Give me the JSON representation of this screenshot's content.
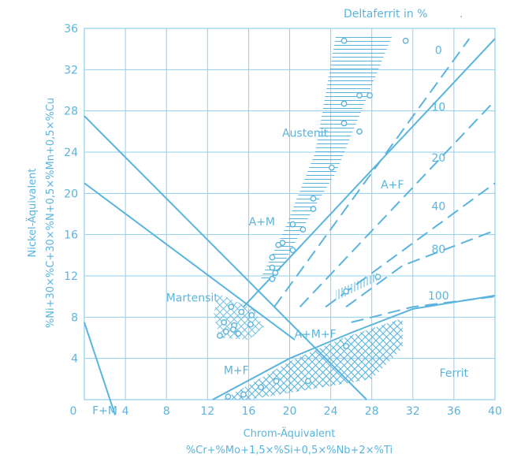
{
  "chart_data": {
    "type": "diagram",
    "title": "",
    "x_axis": {
      "label": "Chrom-Äquivalent",
      "formula": "%Cr+%Mo+1,5×%Si+0,5×%Nb+2×%Ti",
      "range": [
        0,
        40
      ],
      "ticks": [
        "0",
        "4",
        "8",
        "12",
        "16",
        "20",
        "24",
        "28",
        "32",
        "36",
        "40"
      ]
    },
    "y_axis": {
      "label": "Nickel-Äquivalent",
      "formula": "%Ni+30×%C+30×%N+0,5×%Mn+0,5×%Cu",
      "range": [
        0,
        36
      ],
      "ticks": [
        "4",
        "8",
        "12",
        "16",
        "20",
        "24",
        "28",
        "32",
        "36"
      ]
    },
    "grid": true,
    "deltaferrit_title": "Deltaferrit in %",
    "regions": [
      {
        "label": "Austenit",
        "x": 21.5,
        "y": 25.5
      },
      {
        "label": "A+M",
        "x": 17.3,
        "y": 16.9
      },
      {
        "label": "Martensit",
        "x": 10.5,
        "y": 9.5
      },
      {
        "label": "A+F",
        "x": 30.0,
        "y": 20.5
      },
      {
        "label": "A+M+F",
        "x": 22.5,
        "y": 6.0
      },
      {
        "label": "M+F",
        "x": 14.8,
        "y": 2.5
      },
      {
        "label": "F+M",
        "x": 2.0,
        "y": -1.4
      },
      {
        "label": "Ferrit",
        "x": 36.0,
        "y": 2.2
      }
    ],
    "ferrite_lines": [
      {
        "label": "0",
        "style": "solid",
        "points": [
          [
            15.5,
            9
          ],
          [
            40,
            35
          ]
        ]
      },
      {
        "label": "10",
        "style": "dashed",
        "points": [
          [
            18.5,
            9
          ],
          [
            37.5,
            35
          ]
        ]
      },
      {
        "label": "20",
        "style": "dashed",
        "points": [
          [
            21,
            9
          ],
          [
            40,
            29
          ]
        ]
      },
      {
        "label": "40",
        "style": "dashed",
        "points": [
          [
            23.5,
            9
          ],
          [
            40,
            21
          ]
        ]
      },
      {
        "label": "80",
        "style": "dashed",
        "points": [
          [
            25.5,
            9
          ],
          [
            31,
            13
          ],
          [
            40,
            16.4
          ]
        ]
      },
      {
        "label": "100",
        "style": "dashed",
        "points": [
          [
            26,
            7.5
          ],
          [
            32,
            9
          ],
          [
            40,
            10
          ]
        ]
      }
    ],
    "ferrite_labels": [
      {
        "label": "0",
        "x": 34.5,
        "y": 33.5
      },
      {
        "label": "10",
        "x": 34.5,
        "y": 28.0
      },
      {
        "label": "20",
        "x": 34.5,
        "y": 23.1
      },
      {
        "label": "40",
        "x": 34.5,
        "y": 18.4
      },
      {
        "label": "80",
        "x": 34.5,
        "y": 14.2
      },
      {
        "label": "100",
        "x": 34.5,
        "y": 9.7
      }
    ],
    "boundaries": [
      {
        "name": "upper",
        "points": [
          [
            0,
            27.5
          ],
          [
            27.5,
            0
          ]
        ]
      },
      {
        "name": "lower",
        "points": [
          [
            0,
            21
          ],
          [
            20.5,
            5.8
          ]
        ]
      },
      {
        "name": "corner",
        "points": [
          [
            0,
            7.5
          ],
          [
            3,
            -1.5
          ]
        ]
      },
      {
        "name": "mf-curve",
        "points": [
          [
            12.5,
            0
          ],
          [
            20,
            4
          ],
          [
            26,
            6.5
          ],
          [
            32,
            8.8
          ],
          [
            40,
            10.1
          ]
        ]
      }
    ],
    "data_points": [
      [
        25.3,
        34.8
      ],
      [
        31.3,
        34.8
      ],
      [
        26.8,
        29.5
      ],
      [
        27.8,
        29.5
      ],
      [
        25.3,
        28.7
      ],
      [
        25.3,
        26.8
      ],
      [
        26.8,
        26
      ],
      [
        24.1,
        22.5
      ],
      [
        22.3,
        19.5
      ],
      [
        22.3,
        18.5
      ],
      [
        20.3,
        17
      ],
      [
        21.3,
        16.5
      ],
      [
        19.3,
        15.2
      ],
      [
        20.3,
        14.5
      ],
      [
        18.9,
        15
      ],
      [
        18.3,
        13.8
      ],
      [
        18.3,
        12.8
      ],
      [
        18.6,
        12.3
      ],
      [
        18.3,
        11.7
      ],
      [
        14.3,
        9
      ],
      [
        15.3,
        8.5
      ],
      [
        16.3,
        8.2
      ],
      [
        13.6,
        7.5
      ],
      [
        14.6,
        7.2
      ],
      [
        16.2,
        7.3
      ],
      [
        13.8,
        6.6
      ],
      [
        15.0,
        6.4
      ],
      [
        13.2,
        6.2
      ],
      [
        14.5,
        6.8
      ],
      [
        25.5,
        10.5
      ],
      [
        28.6,
        11.9
      ],
      [
        18.7,
        1.8
      ],
      [
        21.8,
        1.8
      ],
      [
        17.2,
        1.2
      ],
      [
        15.5,
        0.5
      ],
      [
        14.0,
        0.3
      ],
      [
        25.5,
        5.2
      ]
    ]
  }
}
